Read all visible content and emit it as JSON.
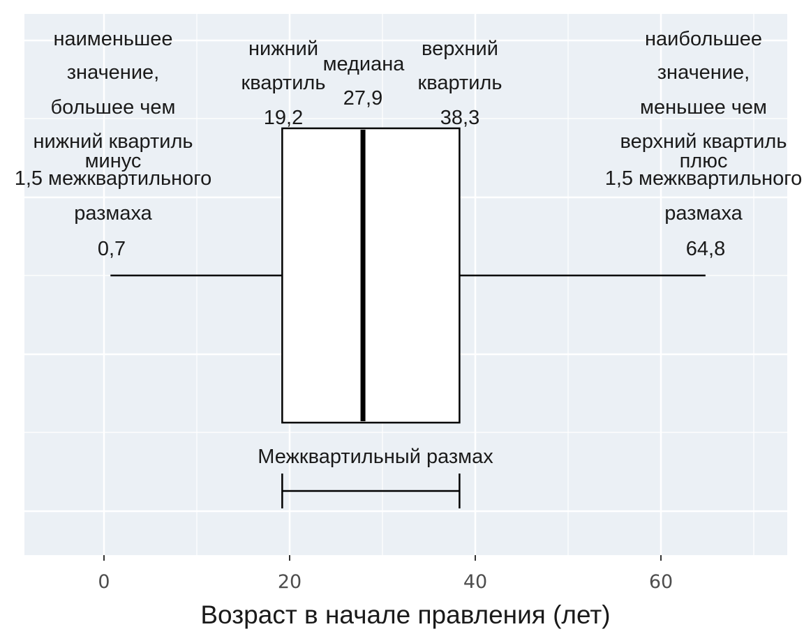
{
  "chart_data": {
    "type": "boxplot",
    "xlabel": "Возраст в начале правления (лет)",
    "xlim": [
      -8.5,
      73.5
    ],
    "xticks": [
      0,
      20,
      40,
      60
    ],
    "x_tick_labels": [
      "0",
      "20",
      "40",
      "60"
    ],
    "grid": true,
    "stats": {
      "whisker_low": 0.7,
      "q1": 19.2,
      "median": 27.9,
      "q3": 38.3,
      "whisker_high": 64.8
    },
    "annotations": {
      "min_label": [
        "наименьшее",
        "значение,",
        "большее чем",
        "нижний квартиль",
        "минус",
        "1,5 межквартильного",
        "размаха"
      ],
      "min_value": "0,7",
      "q1_label": [
        "нижний",
        "квартиль"
      ],
      "q1_value": "19,2",
      "median_label": "медиана",
      "median_value": "27,9",
      "q3_label": [
        "верхний",
        "квартиль"
      ],
      "q3_value": "38,3",
      "max_label": [
        "наибольшее",
        "значение,",
        "меньшее чем",
        "верхний квартиль",
        "плюс",
        "1,5 межквартильного",
        "размаха"
      ],
      "max_value": "64,8",
      "iqr_label": "Межквартильный размах"
    }
  }
}
